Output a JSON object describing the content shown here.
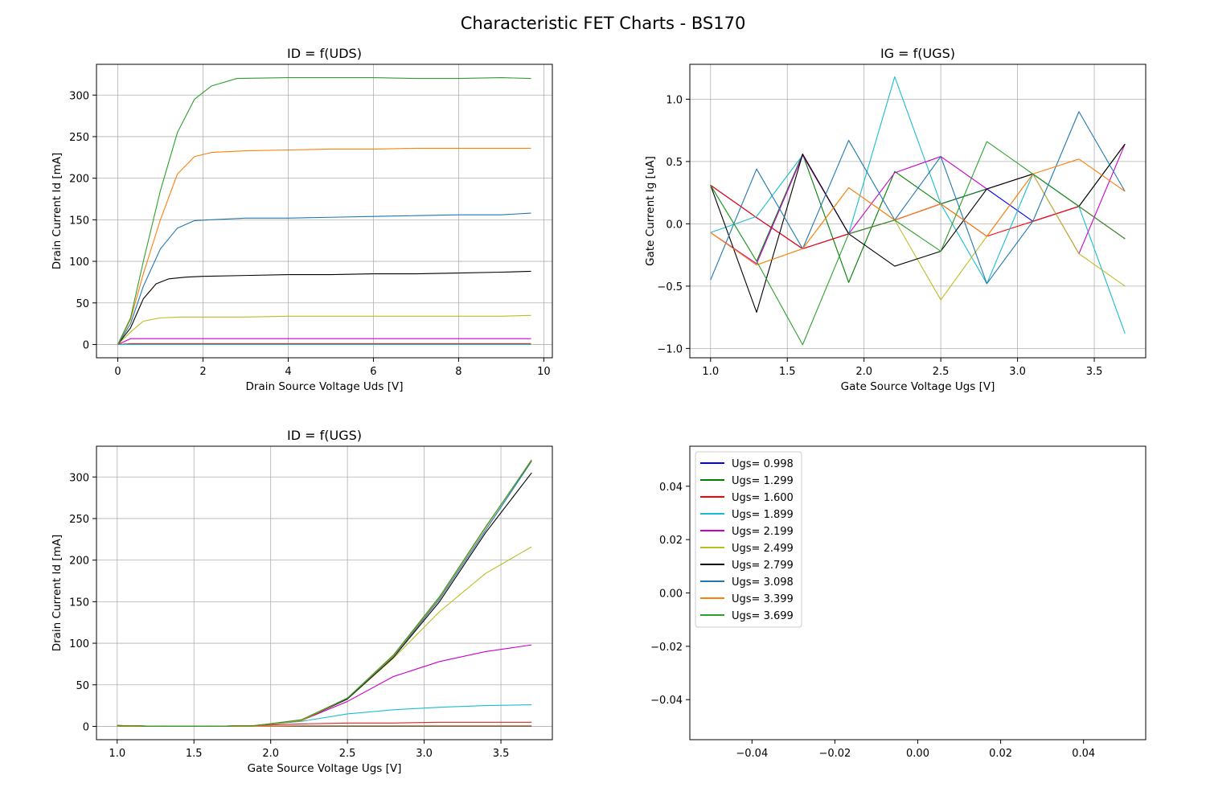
{
  "figure_title": "Characteristic FET Charts - BS170",
  "chart_data": [
    {
      "id": "id_uds",
      "type": "line",
      "title": "ID = f(UDS)",
      "xlabel": "Drain Source Voltage Uds [V]",
      "ylabel": "Drain Current Id [mA]",
      "xlim": [
        -0.5,
        10.2
      ],
      "ylim": [
        -16,
        337
      ],
      "xticks": [
        0,
        2,
        4,
        6,
        8,
        10
      ],
      "xtick_labels": [
        "0",
        "2",
        "4",
        "6",
        "8",
        "10"
      ],
      "yticks": [
        0,
        50,
        100,
        150,
        200,
        250,
        300
      ],
      "ytick_labels": [
        "0",
        "50",
        "100",
        "150",
        "200",
        "250",
        "300"
      ],
      "grid": true,
      "series": [
        {
          "color": "#1f77b4",
          "x": [
            0,
            0.3,
            0.6,
            1,
            1.5,
            2,
            3,
            4,
            5,
            6,
            7,
            8,
            9,
            9.7
          ],
          "values": [
            0,
            0,
            0,
            0,
            0,
            0,
            0,
            0,
            0,
            0,
            0,
            0,
            0,
            0
          ]
        },
        {
          "color": "#ff7f0e",
          "x": [
            0,
            0.3,
            0.6,
            1,
            1.5,
            2,
            3,
            4,
            5,
            6,
            7,
            8,
            9,
            9.7
          ],
          "values": [
            0,
            0,
            0,
            0,
            0,
            0,
            0,
            0,
            0,
            0,
            0,
            0,
            0,
            0
          ]
        },
        {
          "color": "#d62728",
          "x": [
            0,
            0.3,
            0.6,
            1,
            1.5,
            2,
            3,
            4,
            5,
            6,
            7,
            8,
            9,
            9.7
          ],
          "values": [
            0,
            1,
            1,
            1,
            1,
            1,
            1,
            1,
            1,
            1,
            1,
            1,
            1,
            1
          ]
        },
        {
          "color": "#17becf",
          "x": [
            0,
            0.3,
            0.6,
            1,
            1.5,
            2,
            3,
            4,
            5,
            6,
            7,
            8,
            9,
            9.7
          ],
          "values": [
            0,
            0,
            0,
            0,
            0,
            0,
            0,
            0,
            0,
            0,
            0,
            0,
            0,
            0
          ]
        },
        {
          "color": "#cc00cc",
          "x": [
            0,
            0.3,
            0.6,
            1,
            1.5,
            2,
            3,
            4,
            5,
            6,
            7,
            8,
            9,
            9.7
          ],
          "values": [
            0,
            7,
            7,
            7,
            7,
            7,
            7,
            7,
            7,
            7,
            7,
            7,
            7,
            7
          ]
        },
        {
          "color": "#bcbd22",
          "x": [
            0,
            0.3,
            0.6,
            1,
            1.5,
            2,
            3,
            4,
            5,
            6,
            7,
            8,
            9,
            9.7
          ],
          "values": [
            0,
            15,
            28,
            32,
            33,
            33,
            33,
            34,
            34,
            34,
            34,
            34,
            34,
            35
          ]
        },
        {
          "color": "#000000",
          "x": [
            0,
            0.3,
            0.6,
            0.9,
            1.2,
            1.6,
            2,
            3,
            4,
            5,
            6,
            7,
            8,
            9,
            9.7
          ],
          "values": [
            0,
            20,
            55,
            73,
            79,
            81,
            82,
            83,
            84,
            84,
            85,
            85,
            86,
            87,
            88
          ]
        },
        {
          "color": "#1f77b4",
          "x": [
            0,
            0.3,
            0.6,
            1,
            1.4,
            1.8,
            2.2,
            3,
            4,
            5,
            6,
            7,
            8,
            9,
            9.7
          ],
          "values": [
            0,
            25,
            70,
            115,
            140,
            149,
            150,
            152,
            152,
            153,
            154,
            155,
            156,
            156,
            158
          ]
        },
        {
          "color": "#ff7f0e",
          "x": [
            0,
            0.3,
            0.6,
            1,
            1.4,
            1.8,
            2.2,
            3,
            4,
            5,
            6,
            7,
            8,
            9,
            9.7
          ],
          "values": [
            0,
            30,
            85,
            150,
            205,
            226,
            231,
            233,
            234,
            235,
            235,
            236,
            236,
            236,
            236
          ]
        },
        {
          "color": "#2ca02c",
          "x": [
            0,
            0.3,
            0.6,
            1,
            1.4,
            1.8,
            2.2,
            2.8,
            4,
            5,
            6,
            7,
            8,
            9,
            9.7
          ],
          "values": [
            0,
            32,
            100,
            185,
            255,
            295,
            311,
            320,
            321,
            321,
            321,
            320,
            320,
            321,
            320
          ]
        }
      ]
    },
    {
      "id": "ig_ugs",
      "type": "line",
      "title": "IG = f(UGS)",
      "xlabel": "Gate Source Voltage Ugs [V]",
      "ylabel": "Gate Current Ig [uA]",
      "xlim": [
        0.865,
        3.835
      ],
      "ylim": [
        -1.075,
        1.28
      ],
      "xticks": [
        1.0,
        1.5,
        2.0,
        2.5,
        3.0,
        3.5
      ],
      "xtick_labels": [
        "1.0",
        "1.5",
        "2.0",
        "2.5",
        "3.0",
        "3.5"
      ],
      "yticks": [
        -1.0,
        -0.5,
        0.0,
        0.5,
        1.0
      ],
      "ytick_labels": [
        "−1.0",
        "−0.5",
        "0.0",
        "0.5",
        "1.0"
      ],
      "grid": true,
      "x": [
        1.0,
        1.3,
        1.6,
        1.9,
        2.2,
        2.5,
        2.8,
        3.1,
        3.4,
        3.7
      ],
      "series": [
        {
          "color": "#0000ff",
          "values": [
            0.31,
            0.05,
            -0.2,
            -0.08,
            0.03,
            0.16,
            0.28,
            0.02,
            0.14,
            -0.12
          ]
        },
        {
          "color": "#008000",
          "values": [
            0.31,
            -0.3,
            0.56,
            -0.47,
            0.42,
            0.16,
            0.28,
            0.4,
            0.14,
            0.64
          ]
        },
        {
          "color": "#ff0000",
          "values": [
            0.31,
            0.05,
            -0.2,
            -0.08,
            0.03,
            0.16,
            -0.1,
            0.02,
            0.14,
            -0.12
          ]
        },
        {
          "color": "#17becf",
          "values": [
            -0.07,
            0.06,
            0.55,
            -0.08,
            1.18,
            0.16,
            -0.48,
            0.4,
            0.14,
            -0.88
          ]
        },
        {
          "color": "#cc00cc",
          "values": [
            -0.07,
            -0.32,
            0.55,
            -0.08,
            0.41,
            0.54,
            0.28,
            0.4,
            -0.24,
            0.64
          ]
        },
        {
          "color": "#bcbd22",
          "values": [
            -0.07,
            -0.33,
            -0.2,
            0.29,
            0.03,
            -0.61,
            -0.1,
            0.4,
            -0.24,
            -0.5
          ]
        },
        {
          "color": "#000000",
          "values": [
            0.31,
            -0.71,
            0.56,
            -0.08,
            -0.34,
            -0.22,
            0.28,
            0.4,
            0.14,
            0.64
          ]
        },
        {
          "color": "#1f77b4",
          "values": [
            -0.45,
            0.44,
            -0.2,
            0.67,
            0.03,
            0.54,
            -0.48,
            0.02,
            0.9,
            0.26
          ]
        },
        {
          "color": "#ff7f0e",
          "values": [
            -0.07,
            -0.33,
            -0.2,
            0.29,
            0.03,
            0.16,
            -0.1,
            0.4,
            0.52,
            0.26
          ]
        },
        {
          "color": "#2ca02c",
          "values": [
            0.31,
            -0.3,
            -0.97,
            -0.08,
            0.03,
            -0.22,
            0.66,
            0.4,
            0.14,
            -0.12
          ]
        }
      ]
    },
    {
      "id": "id_ugs",
      "type": "line",
      "title": "ID = f(UGS)",
      "xlabel": "Gate Source Voltage Ugs [V]",
      "ylabel": "Drain Current Id [mA]",
      "xlim": [
        0.865,
        3.835
      ],
      "ylim": [
        -16,
        337
      ],
      "xticks": [
        1.0,
        1.5,
        2.0,
        2.5,
        3.0,
        3.5
      ],
      "xtick_labels": [
        "1.0",
        "1.5",
        "2.0",
        "2.5",
        "3.0",
        "3.5"
      ],
      "yticks": [
        0,
        50,
        100,
        150,
        200,
        250,
        300
      ],
      "ytick_labels": [
        "0",
        "50",
        "100",
        "150",
        "200",
        "250",
        "300"
      ],
      "grid": true,
      "x": [
        1.0,
        1.3,
        1.6,
        1.9,
        2.2,
        2.5,
        2.8,
        3.1,
        3.4,
        3.7
      ],
      "series": [
        {
          "color": "#1f77b4",
          "values": [
            0,
            0,
            0,
            0,
            0,
            0,
            0,
            0,
            0,
            0
          ]
        },
        {
          "color": "#ff7f0e",
          "values": [
            0,
            0,
            0,
            0,
            1,
            1,
            1,
            1,
            1,
            1
          ]
        },
        {
          "color": "#d62728",
          "values": [
            1,
            0,
            0,
            1,
            3,
            4,
            4,
            5,
            5,
            5
          ]
        },
        {
          "color": "#17becf",
          "values": [
            1,
            0,
            0,
            1,
            6,
            15,
            20,
            23,
            25,
            26
          ]
        },
        {
          "color": "#cc00cc",
          "values": [
            1,
            0,
            0,
            1,
            7,
            30,
            60,
            78,
            90,
            98
          ]
        },
        {
          "color": "#bcbd22",
          "values": [
            1,
            0,
            0,
            1,
            7,
            33,
            82,
            138,
            184,
            216
          ]
        },
        {
          "color": "#000000",
          "values": [
            1,
            0,
            0,
            1,
            7,
            33,
            83,
            150,
            233,
            305
          ]
        },
        {
          "color": "#1f77b4",
          "values": [
            1,
            0,
            0,
            1,
            7,
            34,
            84,
            153,
            236,
            319
          ]
        },
        {
          "color": "#ff7f0e",
          "values": [
            1,
            0,
            0,
            1,
            7,
            34,
            85,
            155,
            239,
            321
          ]
        },
        {
          "color": "#2ca02c",
          "values": [
            1,
            0,
            0,
            1,
            8,
            34,
            86,
            156,
            240,
            320
          ]
        }
      ]
    },
    {
      "id": "legend_panel",
      "type": "line",
      "title": "",
      "xlabel": "",
      "ylabel": "",
      "xlim": [
        -0.055,
        0.055
      ],
      "ylim": [
        -0.055,
        0.055
      ],
      "xticks": [
        -0.04,
        -0.02,
        0.0,
        0.02,
        0.04
      ],
      "xtick_labels": [
        "−0.04",
        "−0.02",
        "0.00",
        "0.02",
        "0.04"
      ],
      "yticks": [
        -0.04,
        -0.02,
        0.0,
        0.02,
        0.04
      ],
      "ytick_labels": [
        "−0.04",
        "−0.02",
        "0.00",
        "0.02",
        "0.04"
      ],
      "grid": false,
      "legend_position": "upper-left",
      "series": [],
      "legend": [
        {
          "name": "Ugs= 0.998",
          "color": "#0000ff"
        },
        {
          "name": "Ugs= 1.299",
          "color": "#008000"
        },
        {
          "name": "Ugs= 1.600",
          "color": "#ff0000"
        },
        {
          "name": "Ugs= 1.899",
          "color": "#17becf"
        },
        {
          "name": "Ugs= 2.199",
          "color": "#cc00cc"
        },
        {
          "name": "Ugs= 2.499",
          "color": "#bcbd22"
        },
        {
          "name": "Ugs= 2.799",
          "color": "#000000"
        },
        {
          "name": "Ugs= 3.098",
          "color": "#1f77b4"
        },
        {
          "name": "Ugs= 3.399",
          "color": "#ff7f0e"
        },
        {
          "name": "Ugs= 3.699",
          "color": "#2ca02c"
        }
      ]
    }
  ]
}
